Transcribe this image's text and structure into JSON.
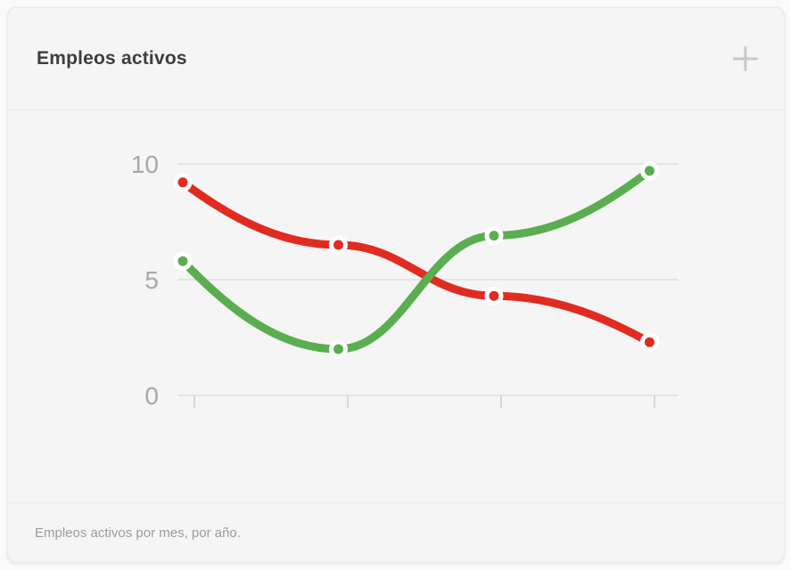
{
  "panel": {
    "title": "Empleos activos",
    "caption": "Empleos activos por mes, por año.",
    "actions": {
      "add_icon": "plus-icon",
      "add_icon_color": "#c8c8c8"
    }
  },
  "chart_data": {
    "type": "line",
    "title": "Empleos activos",
    "xlabel": "",
    "ylabel": "",
    "x_labels": [
      "",
      "",
      "",
      ""
    ],
    "series": [
      {
        "name": "red",
        "color": "#e12b21",
        "values": [
          9.2,
          6.5,
          4.3,
          2.3
        ]
      },
      {
        "name": "green",
        "color": "#5aae50",
        "values": [
          5.8,
          2.0,
          6.9,
          9.7
        ]
      }
    ],
    "ylim": [
      0,
      10
    ],
    "yticks": [
      10,
      5,
      0
    ],
    "grid": "horizontal",
    "legend": "none",
    "line_style": "smooth",
    "point_style": "filled-circle-white-ring",
    "axis_label_color": "#a8a8a8",
    "grid_color": "#dedede",
    "caption": "Empleos activos por mes, por año."
  }
}
